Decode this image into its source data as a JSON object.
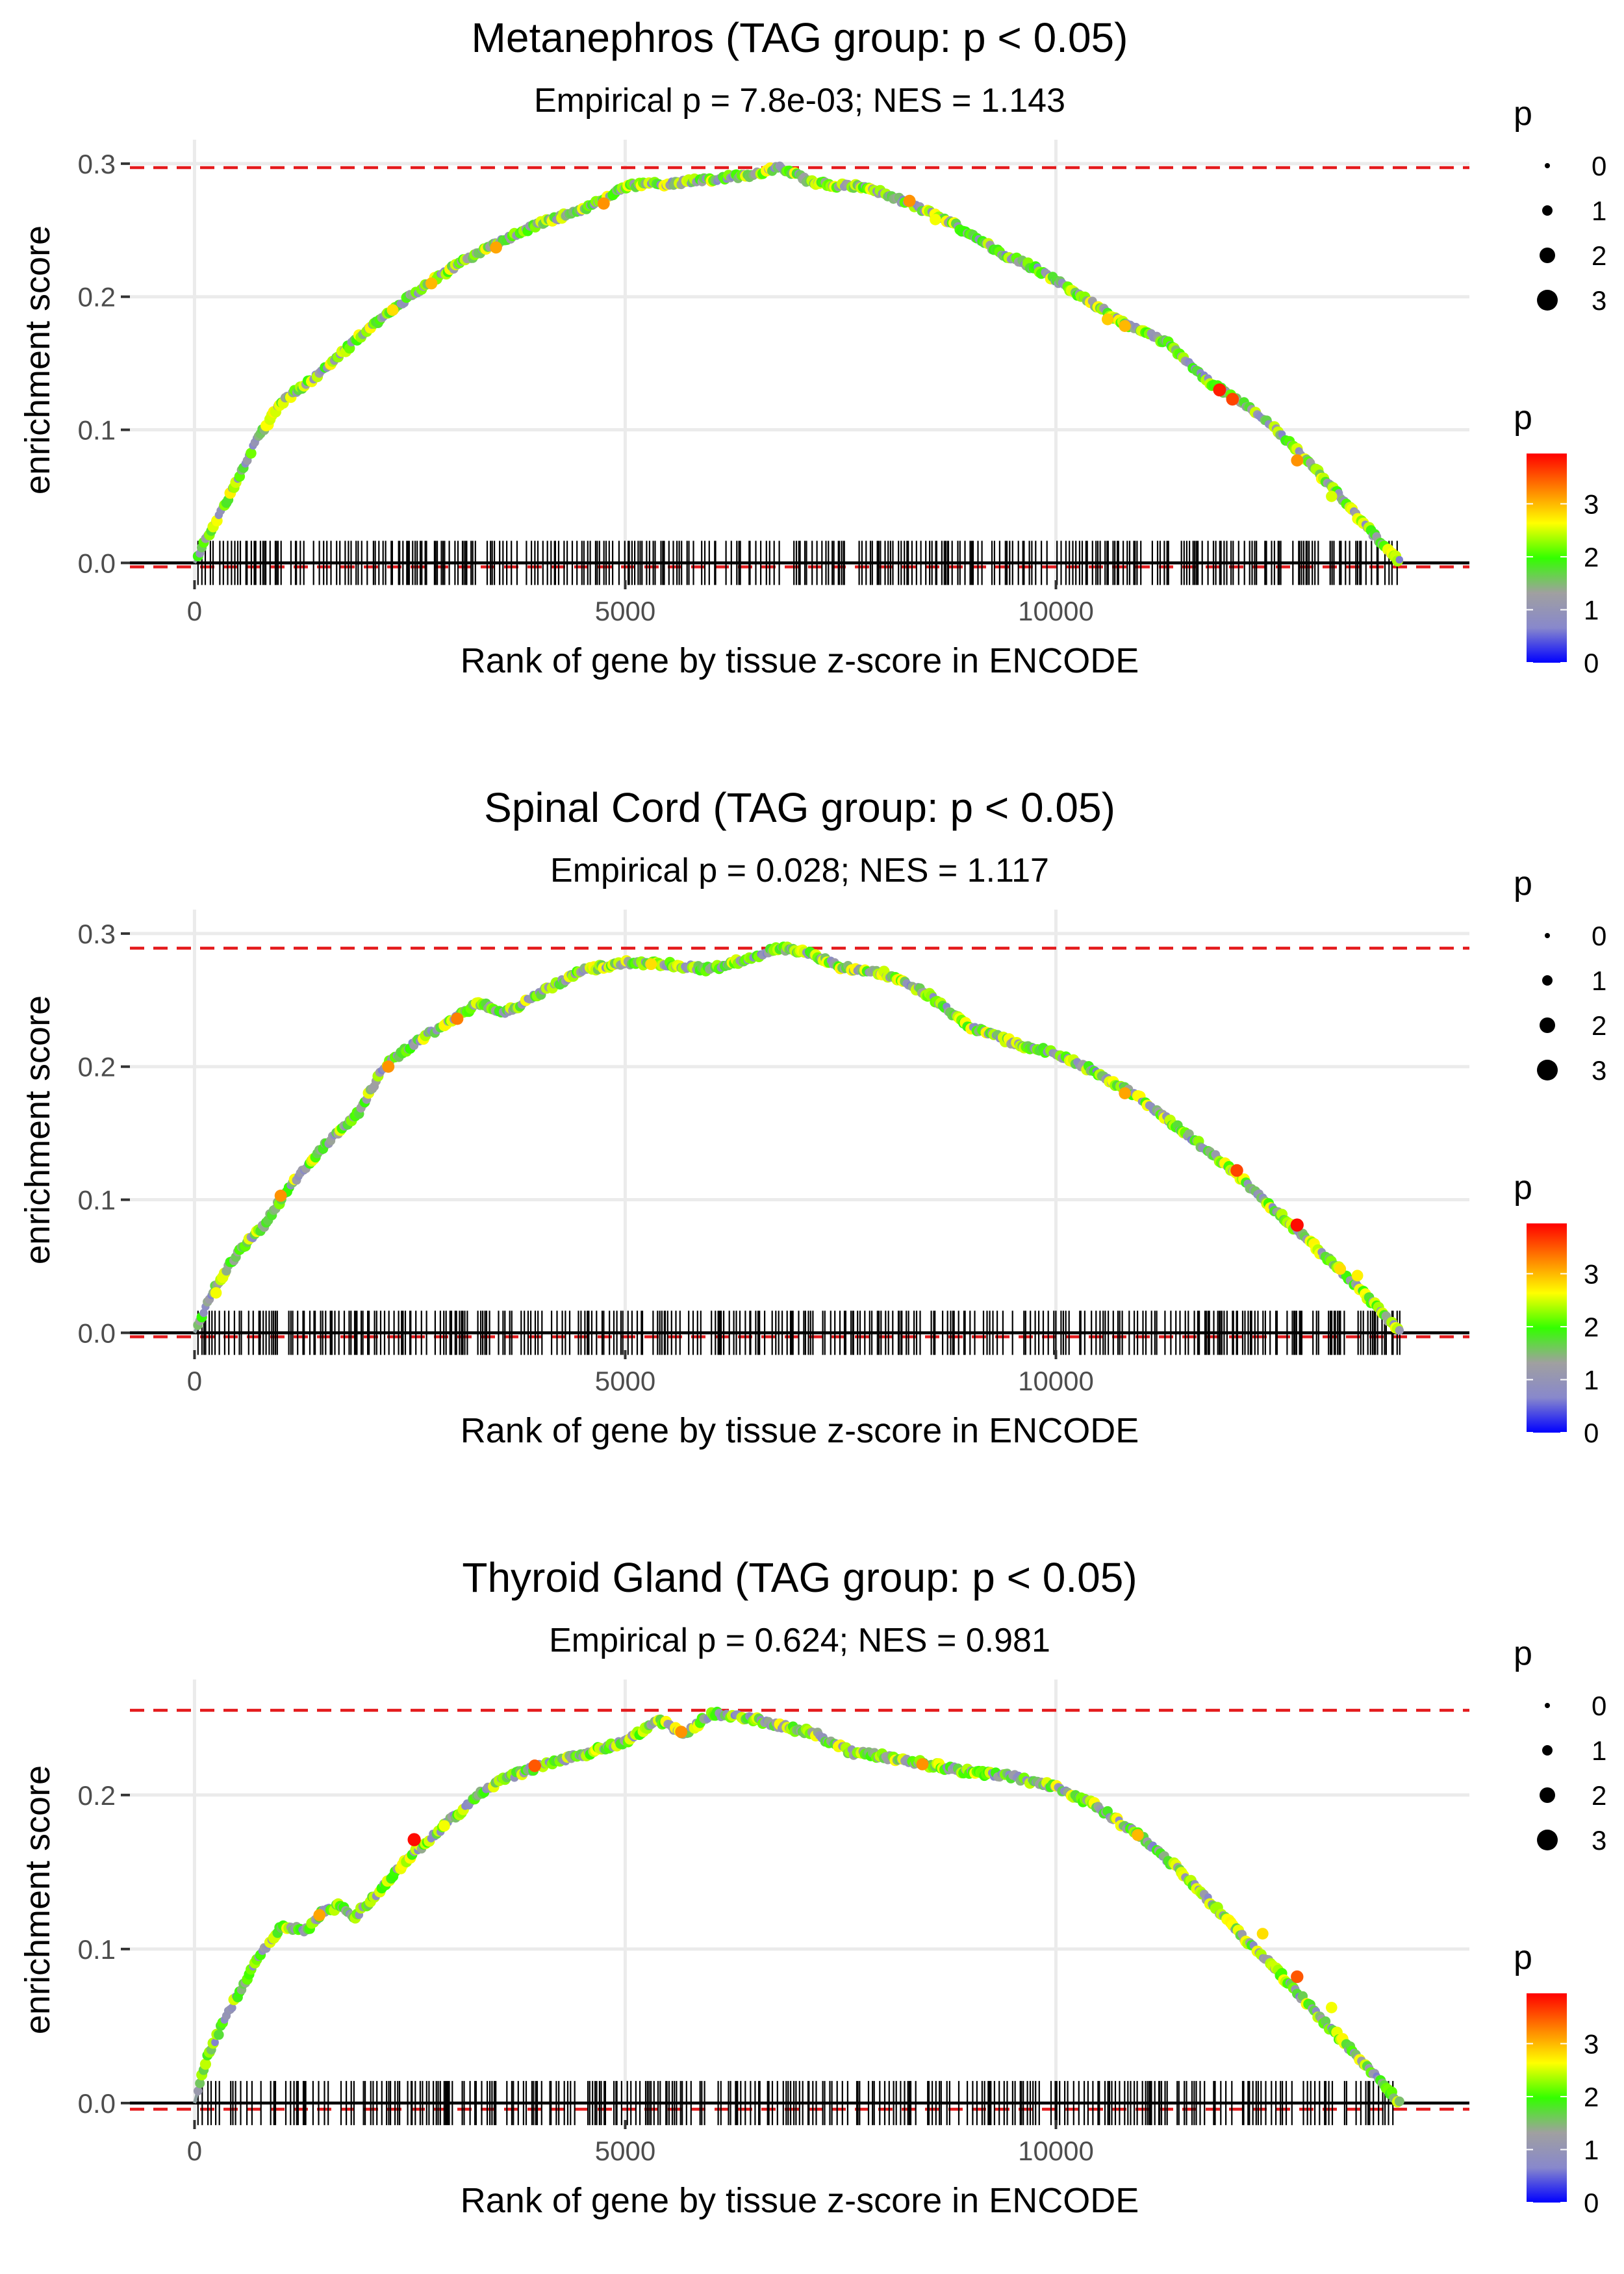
{
  "colors": {
    "grid": "#ebebeb",
    "ref_line": "#e41a1c",
    "zero_line": "#000000",
    "tick": "#000000",
    "barcode": "#000000",
    "gradient": [
      "#0000ff",
      "#8888cc",
      "#a0a0a0",
      "#33ff00",
      "#ffff00",
      "#ff8000",
      "#ff0000"
    ]
  },
  "chart_data": [
    {
      "type": "line",
      "title": "Metanephros (TAG group: p < 0.05)",
      "subtitle": "Empirical p = 7.8e-03; NES = 1.143",
      "xlabel": "Rank of gene by tissue z-score in ENCODE",
      "ylabel": "enrichment score",
      "xlim": [
        -750,
        14800
      ],
      "ylim": [
        -0.013,
        0.318
      ],
      "x_ticks": [
        0,
        5000,
        10000
      ],
      "x_tick_labels": [
        "0",
        "5000",
        "10000"
      ],
      "y_ticks": [
        0.0,
        0.1,
        0.2,
        0.3
      ],
      "y_tick_labels": [
        "0.0",
        "0.1",
        "0.2",
        "0.3"
      ],
      "max_es": 0.297,
      "min_es": -0.003,
      "n_genes": 14000,
      "curve": [
        [
          0,
          0.0
        ],
        [
          150,
          0.02
        ],
        [
          400,
          0.05
        ],
        [
          700,
          0.09
        ],
        [
          1000,
          0.12
        ],
        [
          1500,
          0.145
        ],
        [
          2000,
          0.175
        ],
        [
          2500,
          0.2
        ],
        [
          3000,
          0.222
        ],
        [
          3500,
          0.24
        ],
        [
          4000,
          0.255
        ],
        [
          4500,
          0.265
        ],
        [
          5000,
          0.283
        ],
        [
          5500,
          0.285
        ],
        [
          6000,
          0.288
        ],
        [
          6500,
          0.292
        ],
        [
          6800,
          0.297
        ],
        [
          7200,
          0.285
        ],
        [
          7800,
          0.282
        ],
        [
          8300,
          0.27
        ],
        [
          8800,
          0.255
        ],
        [
          9300,
          0.235
        ],
        [
          9800,
          0.22
        ],
        [
          10300,
          0.2
        ],
        [
          10800,
          0.18
        ],
        [
          11300,
          0.165
        ],
        [
          11800,
          0.135
        ],
        [
          12300,
          0.115
        ],
        [
          12800,
          0.085
        ],
        [
          13300,
          0.05
        ],
        [
          13700,
          0.02
        ],
        [
          14000,
          0.0
        ]
      ],
      "highlights": [
        [
          2300,
          0.19,
          2.8
        ],
        [
          2750,
          0.21,
          3.0
        ],
        [
          3500,
          0.237,
          3.1
        ],
        [
          4750,
          0.27,
          3.2
        ],
        [
          8300,
          0.272,
          3.2
        ],
        [
          8600,
          0.258,
          2.6
        ],
        [
          10600,
          0.183,
          2.9
        ],
        [
          10800,
          0.178,
          3.0
        ],
        [
          11900,
          0.13,
          3.8
        ],
        [
          12050,
          0.123,
          3.6
        ],
        [
          12800,
          0.077,
          3.2
        ],
        [
          13200,
          0.05,
          2.5
        ]
      ],
      "legend": {
        "size_title": "p",
        "size_labels": [
          "0",
          "1",
          "2",
          "3"
        ],
        "color_title": "p",
        "color_labels": [
          "3",
          "2",
          "1",
          "0"
        ]
      }
    },
    {
      "type": "line",
      "title": "Spinal Cord (TAG group: p < 0.05)",
      "subtitle": "Empirical p = 0.028; NES = 1.117",
      "xlabel": "Rank of gene by tissue z-score in ENCODE",
      "ylabel": "enrichment score",
      "xlim": [
        -750,
        14800
      ],
      "ylim": [
        -0.013,
        0.318
      ],
      "x_ticks": [
        0,
        5000,
        10000
      ],
      "x_tick_labels": [
        "0",
        "5000",
        "10000"
      ],
      "y_ticks": [
        0.0,
        0.1,
        0.2,
        0.3
      ],
      "y_tick_labels": [
        "0.0",
        "0.1",
        "0.2",
        "0.3"
      ],
      "max_es": 0.289,
      "min_es": -0.003,
      "n_genes": 14000,
      "curve": [
        [
          0,
          0.0
        ],
        [
          200,
          0.03
        ],
        [
          500,
          0.06
        ],
        [
          800,
          0.08
        ],
        [
          1100,
          0.11
        ],
        [
          1500,
          0.14
        ],
        [
          1900,
          0.165
        ],
        [
          2200,
          0.2
        ],
        [
          2600,
          0.22
        ],
        [
          3000,
          0.235
        ],
        [
          3300,
          0.248
        ],
        [
          3600,
          0.24
        ],
        [
          4000,
          0.255
        ],
        [
          4500,
          0.272
        ],
        [
          5000,
          0.278
        ],
        [
          5500,
          0.277
        ],
        [
          6000,
          0.273
        ],
        [
          6500,
          0.283
        ],
        [
          6800,
          0.289
        ],
        [
          7100,
          0.286
        ],
        [
          7500,
          0.275
        ],
        [
          8000,
          0.27
        ],
        [
          8500,
          0.255
        ],
        [
          9000,
          0.23
        ],
        [
          9500,
          0.218
        ],
        [
          10000,
          0.21
        ],
        [
          10500,
          0.195
        ],
        [
          11000,
          0.175
        ],
        [
          11500,
          0.15
        ],
        [
          12000,
          0.125
        ],
        [
          12500,
          0.095
        ],
        [
          13000,
          0.065
        ],
        [
          13500,
          0.035
        ],
        [
          14000,
          0.0
        ]
      ],
      "highlights": [
        [
          250,
          0.03,
          2.6
        ],
        [
          1000,
          0.103,
          3.2
        ],
        [
          2250,
          0.2,
          3.2
        ],
        [
          3050,
          0.236,
          3.3
        ],
        [
          5300,
          0.277,
          2.8
        ],
        [
          10800,
          0.18,
          3.1
        ],
        [
          12100,
          0.122,
          3.6
        ],
        [
          12800,
          0.081,
          3.9
        ],
        [
          13300,
          0.048,
          2.8
        ],
        [
          13500,
          0.043,
          2.7
        ]
      ],
      "legend": {
        "size_title": "p",
        "size_labels": [
          "0",
          "1",
          "2",
          "3"
        ],
        "color_title": "p",
        "color_labels": [
          "3",
          "2",
          "1",
          "0"
        ]
      }
    },
    {
      "type": "line",
      "title": "Thyroid Gland (TAG group: p < 0.05)",
      "subtitle": "Empirical p = 0.624; NES = 0.981",
      "xlabel": "Rank of gene by tissue z-score in ENCODE",
      "ylabel": "enrichment score",
      "xlim": [
        -750,
        14800
      ],
      "ylim": [
        -0.011,
        0.275
      ],
      "x_ticks": [
        0,
        5000,
        10000
      ],
      "x_tick_labels": [
        "0",
        "5000",
        "10000"
      ],
      "y_ticks": [
        0.0,
        0.1,
        0.2
      ],
      "y_tick_labels": [
        "0.0",
        "0.1",
        "0.2"
      ],
      "max_es": 0.255,
      "min_es": -0.004,
      "n_genes": 14000,
      "curve": [
        [
          0,
          0.0
        ],
        [
          150,
          0.03
        ],
        [
          400,
          0.06
        ],
        [
          700,
          0.09
        ],
        [
          1000,
          0.115
        ],
        [
          1300,
          0.112
        ],
        [
          1500,
          0.125
        ],
        [
          1700,
          0.128
        ],
        [
          1850,
          0.12
        ],
        [
          2100,
          0.135
        ],
        [
          2500,
          0.16
        ],
        [
          2800,
          0.175
        ],
        [
          3100,
          0.19
        ],
        [
          3400,
          0.205
        ],
        [
          3800,
          0.215
        ],
        [
          4200,
          0.222
        ],
        [
          4600,
          0.228
        ],
        [
          5000,
          0.235
        ],
        [
          5400,
          0.248
        ],
        [
          5700,
          0.24
        ],
        [
          6000,
          0.253
        ],
        [
          6400,
          0.25
        ],
        [
          6800,
          0.245
        ],
        [
          7200,
          0.24
        ],
        [
          7600,
          0.228
        ],
        [
          8000,
          0.225
        ],
        [
          8500,
          0.22
        ],
        [
          9000,
          0.215
        ],
        [
          9500,
          0.212
        ],
        [
          10000,
          0.205
        ],
        [
          10500,
          0.192
        ],
        [
          11000,
          0.172
        ],
        [
          11500,
          0.148
        ],
        [
          12000,
          0.118
        ],
        [
          12500,
          0.09
        ],
        [
          13000,
          0.06
        ],
        [
          13500,
          0.03
        ],
        [
          14000,
          0.0
        ]
      ],
      "highlights": [
        [
          1450,
          0.122,
          3.1
        ],
        [
          2550,
          0.171,
          3.9
        ],
        [
          2900,
          0.18,
          2.6
        ],
        [
          3950,
          0.219,
          3.5
        ],
        [
          5650,
          0.241,
          3.2
        ],
        [
          8450,
          0.22,
          3.2
        ],
        [
          10950,
          0.174,
          3.0
        ],
        [
          12400,
          0.11,
          2.8
        ],
        [
          12800,
          0.082,
          3.5
        ],
        [
          13200,
          0.062,
          2.6
        ]
      ],
      "legend": {
        "size_title": "p",
        "size_labels": [
          "0",
          "1",
          "2",
          "3"
        ],
        "color_title": "p",
        "color_labels": [
          "3",
          "2",
          "1",
          "0"
        ]
      }
    }
  ]
}
